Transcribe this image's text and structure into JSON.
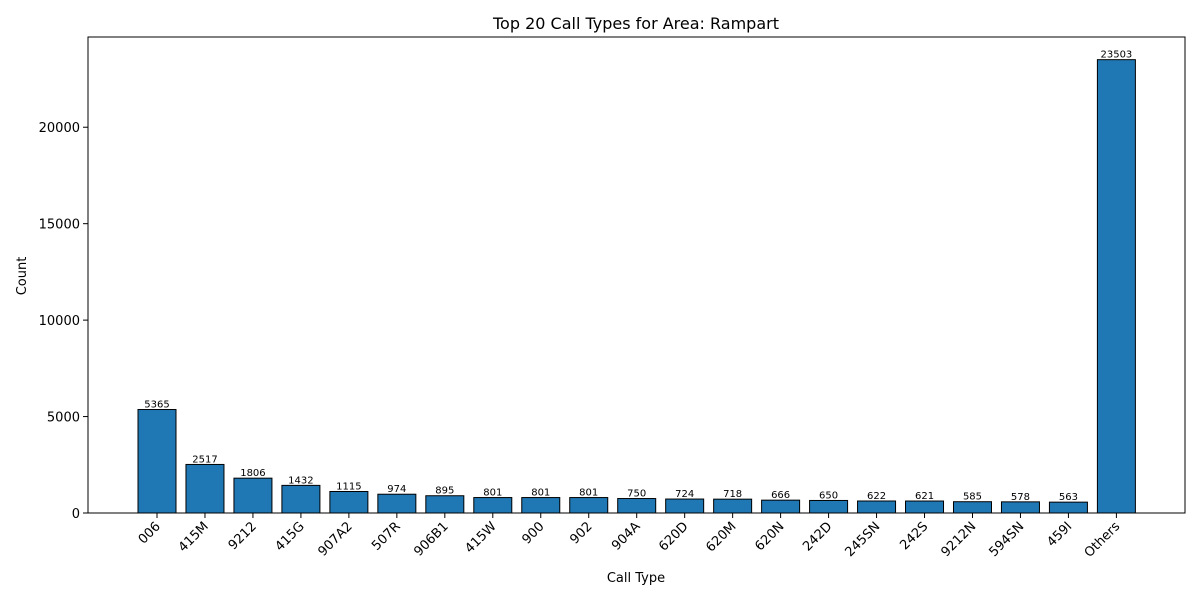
{
  "chart_data": {
    "type": "bar",
    "title": "Top 20 Call Types for Area: Rampart",
    "xlabel": "Call Type",
    "ylabel": "Count",
    "categories": [
      "006",
      "415M",
      "9212",
      "415G",
      "907A2",
      "507R",
      "906B1",
      "415W",
      "900",
      "902",
      "904A",
      "620D",
      "620M",
      "620N",
      "242D",
      "245SN",
      "242S",
      "9212N",
      "594SN",
      "459I",
      "Others"
    ],
    "values": [
      5365,
      2517,
      1806,
      1432,
      1115,
      974,
      895,
      801,
      801,
      801,
      750,
      724,
      718,
      666,
      650,
      622,
      621,
      585,
      578,
      563,
      23503
    ],
    "ylim": [
      0,
      24678
    ],
    "yticks": [
      0,
      5000,
      10000,
      15000,
      20000
    ],
    "bar_color": "#1f77b4",
    "grid": false,
    "legend": false
  }
}
